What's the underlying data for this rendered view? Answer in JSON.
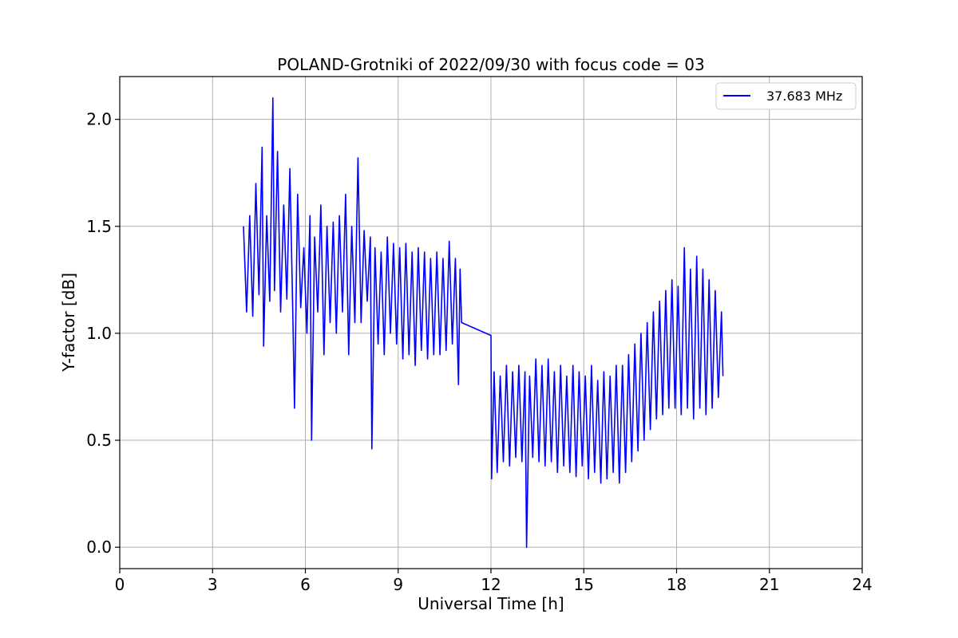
{
  "chart_data": {
    "type": "line",
    "title": "POLAND-Grotniki of 2022/09/30 with focus code = 03",
    "xlabel": "Universal Time [h]",
    "ylabel": "Y-factor [dB]",
    "xlim": [
      0,
      24
    ],
    "ylim": [
      -0.1,
      2.2
    ],
    "xticks": [
      0,
      3,
      6,
      9,
      12,
      15,
      18,
      21,
      24
    ],
    "yticks": [
      0.0,
      0.5,
      1.0,
      1.5,
      2.0
    ],
    "ytick_labels": [
      "0.0",
      "0.5",
      "1.0",
      "1.5",
      "2.0"
    ],
    "grid": true,
    "legend_position": "top-right",
    "series": [
      {
        "name": "37.683 MHz",
        "color": "#0000ff",
        "points": [
          [
            4.0,
            1.5
          ],
          [
            4.1,
            1.1
          ],
          [
            4.2,
            1.55
          ],
          [
            4.3,
            1.08
          ],
          [
            4.4,
            1.7
          ],
          [
            4.5,
            1.18
          ],
          [
            4.6,
            1.87
          ],
          [
            4.65,
            0.94
          ],
          [
            4.75,
            1.55
          ],
          [
            4.85,
            1.15
          ],
          [
            4.95,
            2.1
          ],
          [
            5.0,
            1.2
          ],
          [
            5.1,
            1.85
          ],
          [
            5.2,
            1.1
          ],
          [
            5.3,
            1.6
          ],
          [
            5.4,
            1.16
          ],
          [
            5.5,
            1.77
          ],
          [
            5.6,
            1.05
          ],
          [
            5.65,
            0.65
          ],
          [
            5.75,
            1.65
          ],
          [
            5.85,
            1.12
          ],
          [
            5.95,
            1.4
          ],
          [
            6.05,
            1.0
          ],
          [
            6.15,
            1.55
          ],
          [
            6.2,
            0.5
          ],
          [
            6.3,
            1.45
          ],
          [
            6.4,
            1.1
          ],
          [
            6.5,
            1.6
          ],
          [
            6.6,
            0.9
          ],
          [
            6.7,
            1.5
          ],
          [
            6.8,
            1.05
          ],
          [
            6.9,
            1.52
          ],
          [
            7.0,
            1.0
          ],
          [
            7.1,
            1.55
          ],
          [
            7.2,
            1.1
          ],
          [
            7.3,
            1.65
          ],
          [
            7.4,
            0.9
          ],
          [
            7.5,
            1.5
          ],
          [
            7.6,
            1.05
          ],
          [
            7.7,
            1.82
          ],
          [
            7.8,
            1.05
          ],
          [
            7.9,
            1.48
          ],
          [
            8.0,
            1.15
          ],
          [
            8.1,
            1.45
          ],
          [
            8.15,
            0.46
          ],
          [
            8.25,
            1.4
          ],
          [
            8.35,
            0.95
          ],
          [
            8.45,
            1.38
          ],
          [
            8.55,
            0.9
          ],
          [
            8.65,
            1.45
          ],
          [
            8.75,
            1.0
          ],
          [
            8.85,
            1.42
          ],
          [
            8.95,
            0.95
          ],
          [
            9.05,
            1.4
          ],
          [
            9.15,
            0.88
          ],
          [
            9.25,
            1.42
          ],
          [
            9.35,
            0.9
          ],
          [
            9.45,
            1.38
          ],
          [
            9.55,
            0.85
          ],
          [
            9.65,
            1.4
          ],
          [
            9.75,
            0.92
          ],
          [
            9.85,
            1.38
          ],
          [
            9.95,
            0.88
          ],
          [
            10.05,
            1.35
          ],
          [
            10.15,
            0.9
          ],
          [
            10.25,
            1.38
          ],
          [
            10.35,
            0.9
          ],
          [
            10.45,
            1.35
          ],
          [
            10.55,
            0.92
          ],
          [
            10.65,
            1.43
          ],
          [
            10.75,
            0.95
          ],
          [
            10.85,
            1.35
          ],
          [
            10.95,
            0.76
          ],
          [
            11.0,
            1.3
          ],
          [
            11.05,
            1.05
          ],
          [
            12.0,
            0.99
          ],
          [
            12.02,
            0.32
          ],
          [
            12.1,
            0.82
          ],
          [
            12.2,
            0.35
          ],
          [
            12.3,
            0.8
          ],
          [
            12.4,
            0.4
          ],
          [
            12.5,
            0.85
          ],
          [
            12.6,
            0.38
          ],
          [
            12.7,
            0.82
          ],
          [
            12.8,
            0.42
          ],
          [
            12.9,
            0.85
          ],
          [
            13.0,
            0.4
          ],
          [
            13.1,
            0.82
          ],
          [
            13.15,
            0.0
          ],
          [
            13.25,
            0.8
          ],
          [
            13.35,
            0.42
          ],
          [
            13.45,
            0.88
          ],
          [
            13.55,
            0.4
          ],
          [
            13.65,
            0.85
          ],
          [
            13.75,
            0.38
          ],
          [
            13.85,
            0.88
          ],
          [
            13.95,
            0.4
          ],
          [
            14.05,
            0.82
          ],
          [
            14.15,
            0.35
          ],
          [
            14.25,
            0.85
          ],
          [
            14.35,
            0.38
          ],
          [
            14.45,
            0.8
          ],
          [
            14.55,
            0.35
          ],
          [
            14.65,
            0.85
          ],
          [
            14.75,
            0.33
          ],
          [
            14.85,
            0.82
          ],
          [
            14.95,
            0.38
          ],
          [
            15.05,
            0.8
          ],
          [
            15.15,
            0.32
          ],
          [
            15.25,
            0.85
          ],
          [
            15.35,
            0.35
          ],
          [
            15.45,
            0.78
          ],
          [
            15.55,
            0.3
          ],
          [
            15.65,
            0.82
          ],
          [
            15.75,
            0.32
          ],
          [
            15.85,
            0.8
          ],
          [
            15.95,
            0.35
          ],
          [
            16.05,
            0.85
          ],
          [
            16.15,
            0.3
          ],
          [
            16.25,
            0.85
          ],
          [
            16.35,
            0.35
          ],
          [
            16.45,
            0.9
          ],
          [
            16.55,
            0.4
          ],
          [
            16.65,
            0.95
          ],
          [
            16.75,
            0.45
          ],
          [
            16.85,
            1.0
          ],
          [
            16.95,
            0.5
          ],
          [
            17.05,
            1.05
          ],
          [
            17.15,
            0.55
          ],
          [
            17.25,
            1.1
          ],
          [
            17.35,
            0.6
          ],
          [
            17.45,
            1.15
          ],
          [
            17.55,
            0.62
          ],
          [
            17.65,
            1.2
          ],
          [
            17.75,
            0.65
          ],
          [
            17.85,
            1.25
          ],
          [
            17.95,
            0.65
          ],
          [
            18.05,
            1.22
          ],
          [
            18.15,
            0.62
          ],
          [
            18.25,
            1.4
          ],
          [
            18.35,
            0.65
          ],
          [
            18.45,
            1.3
          ],
          [
            18.55,
            0.6
          ],
          [
            18.65,
            1.36
          ],
          [
            18.75,
            0.65
          ],
          [
            18.85,
            1.3
          ],
          [
            18.95,
            0.62
          ],
          [
            19.05,
            1.25
          ],
          [
            19.15,
            0.65
          ],
          [
            19.25,
            1.2
          ],
          [
            19.35,
            0.7
          ],
          [
            19.45,
            1.1
          ],
          [
            19.5,
            0.8
          ]
        ]
      }
    ]
  }
}
